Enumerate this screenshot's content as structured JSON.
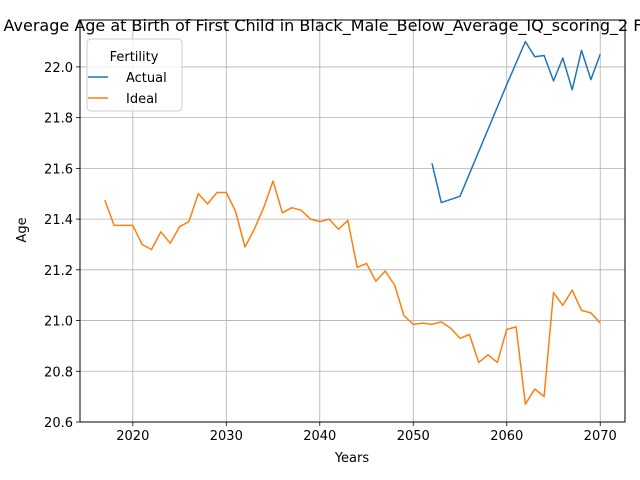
{
  "chart_data": {
    "type": "line",
    "title": "Average Age at Birth of First Child in Black_Male_Below_Average_IQ_scoring_2 F",
    "xlabel": "Years",
    "ylabel": "Age",
    "xlim": [
      2014.35,
      2072.65
    ],
    "ylim": [
      20.6,
      22.185
    ],
    "xticks": [
      2020,
      2030,
      2040,
      2050,
      2060,
      2070
    ],
    "yticks": [
      20.6,
      20.8,
      21.0,
      21.2,
      21.4,
      21.6,
      21.8,
      22.0
    ],
    "ytick_labels": [
      "20.6",
      "20.8",
      "21.0",
      "21.2",
      "21.4",
      "21.6",
      "21.8",
      "22.0"
    ],
    "grid": true,
    "legend": {
      "title": "Fertility",
      "placement": "top-left"
    },
    "series": [
      {
        "name": "Actual",
        "color": "#1f77b4",
        "x": [
          2052,
          2053,
          2055,
          2060,
          2062,
          2063,
          2064,
          2065,
          2066,
          2067,
          2068,
          2069,
          2070
        ],
        "y": [
          21.62,
          21.465,
          21.49,
          21.93,
          22.1,
          22.04,
          22.045,
          21.945,
          22.035,
          21.91,
          22.065,
          21.95,
          22.05
        ]
      },
      {
        "name": "Ideal",
        "color": "#ff7f0e",
        "x": [
          2017,
          2018,
          2019,
          2020,
          2021,
          2022,
          2023,
          2024,
          2025,
          2026,
          2027,
          2028,
          2029,
          2030,
          2031,
          2032,
          2033,
          2034,
          2035,
          2036,
          2037,
          2038,
          2039,
          2040,
          2041,
          2042,
          2043,
          2044,
          2045,
          2046,
          2047,
          2048,
          2049,
          2050,
          2051,
          2052,
          2053,
          2054,
          2055,
          2056,
          2057,
          2058,
          2059,
          2060,
          2061,
          2062,
          2063,
          2064,
          2065,
          2066,
          2067,
          2068,
          2069,
          2070
        ],
        "y": [
          21.475,
          21.375,
          21.375,
          21.375,
          21.3,
          21.28,
          21.35,
          21.305,
          21.37,
          21.39,
          21.5,
          21.46,
          21.505,
          21.505,
          21.43,
          21.29,
          21.36,
          21.445,
          21.55,
          21.425,
          21.445,
          21.435,
          21.4,
          21.39,
          21.4,
          21.36,
          21.395,
          21.21,
          21.225,
          21.155,
          21.195,
          21.14,
          21.02,
          20.985,
          20.99,
          20.985,
          20.995,
          20.97,
          20.93,
          20.945,
          20.835,
          20.865,
          20.835,
          20.965,
          20.975,
          20.67,
          20.73,
          20.7,
          21.11,
          21.06,
          21.12,
          21.04,
          21.03,
          20.99
        ]
      }
    ]
  }
}
